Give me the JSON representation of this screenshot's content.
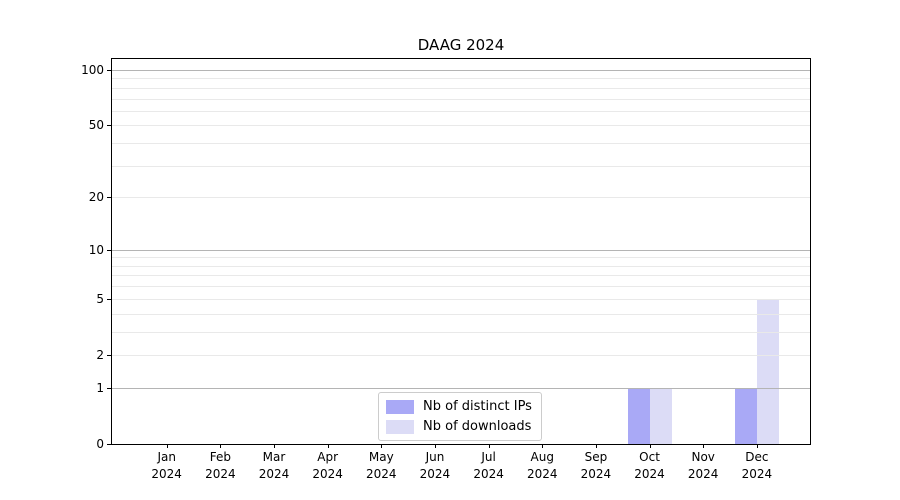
{
  "chart_data": {
    "type": "bar",
    "title": "DAAG 2024",
    "categories": [
      "Jan 2024",
      "Feb 2024",
      "Mar 2024",
      "Apr 2024",
      "May 2024",
      "Jun 2024",
      "Jul 2024",
      "Aug 2024",
      "Sep 2024",
      "Oct 2024",
      "Nov 2024",
      "Dec 2024"
    ],
    "series": [
      {
        "name": "Nb of distinct IPs",
        "color": "#a9a9f6",
        "values": [
          0,
          0,
          0,
          0,
          0,
          0,
          0,
          0,
          0,
          1,
          0,
          1
        ]
      },
      {
        "name": "Nb of downloads",
        "color": "#dcdcf6",
        "values": [
          0,
          0,
          0,
          0,
          0,
          0,
          0,
          0,
          0,
          1,
          0,
          5
        ]
      }
    ],
    "y_scale": "log1p",
    "ylim": [
      0,
      114.7
    ],
    "y_ticks_labeled": [
      100,
      50,
      20,
      10,
      5,
      2,
      1,
      0
    ],
    "y_gridlines_major": [
      1,
      10,
      100
    ],
    "y_gridlines_minor": [
      2,
      3,
      4,
      5,
      6,
      7,
      8,
      9,
      20,
      30,
      40,
      50,
      60,
      70,
      80,
      90
    ],
    "grid": true,
    "legend_position": "lower center",
    "colors": {
      "major_grid": "#b4b4b4",
      "minor_grid": "#e9e9e9",
      "spine": "#000000",
      "text": "#000000",
      "background": "#ffffff"
    }
  }
}
